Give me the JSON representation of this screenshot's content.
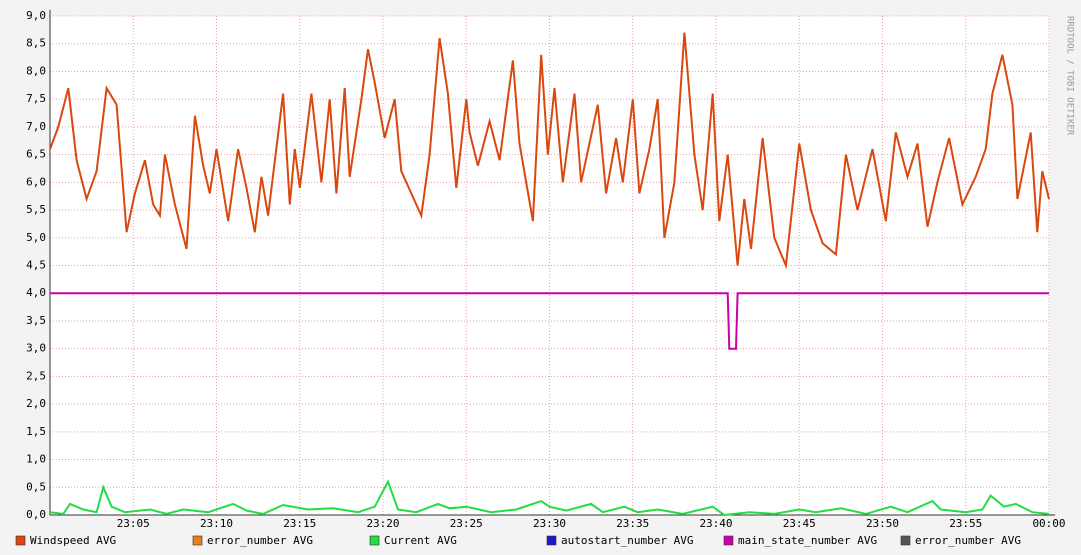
{
  "chart_data": {
    "type": "line",
    "watermark": "RRDTOOL / TOBI OETIKER",
    "xlim": [
      0,
      60
    ],
    "xticks": [
      {
        "value": 5,
        "label": "23:05"
      },
      {
        "value": 10,
        "label": "23:10"
      },
      {
        "value": 15,
        "label": "23:15"
      },
      {
        "value": 20,
        "label": "23:20"
      },
      {
        "value": 25,
        "label": "23:25"
      },
      {
        "value": 30,
        "label": "23:30"
      },
      {
        "value": 35,
        "label": "23:35"
      },
      {
        "value": 40,
        "label": "23:40"
      },
      {
        "value": 45,
        "label": "23:45"
      },
      {
        "value": 50,
        "label": "23:50"
      },
      {
        "value": 55,
        "label": "23:55"
      },
      {
        "value": 60,
        "label": "00:00"
      }
    ],
    "ylim": [
      0,
      9
    ],
    "yticks": [
      {
        "value": 0,
        "label": "0,0"
      },
      {
        "value": 0.5,
        "label": "0,5"
      },
      {
        "value": 1,
        "label": "1,0"
      },
      {
        "value": 1.5,
        "label": "1,5"
      },
      {
        "value": 2,
        "label": "2,0"
      },
      {
        "value": 2.5,
        "label": "2,5"
      },
      {
        "value": 3,
        "label": "3,0"
      },
      {
        "value": 3.5,
        "label": "3,5"
      },
      {
        "value": 4,
        "label": "4,0"
      },
      {
        "value": 4.5,
        "label": "4,5"
      },
      {
        "value": 5,
        "label": "5,0"
      },
      {
        "value": 5.5,
        "label": "5,5"
      },
      {
        "value": 6,
        "label": "6,0"
      },
      {
        "value": 6.5,
        "label": "6,5"
      },
      {
        "value": 7,
        "label": "7,0"
      },
      {
        "value": 7.5,
        "label": "7,5"
      },
      {
        "value": 8,
        "label": "8,0"
      },
      {
        "value": 8.5,
        "label": "8,5"
      },
      {
        "value": 9,
        "label": "9,0"
      }
    ],
    "grid": true,
    "series": [
      {
        "name": "Windspeed AVG",
        "color": "#d9480f",
        "x": [
          0,
          0.5,
          1.1,
          1.6,
          2.2,
          2.8,
          3.4,
          4,
          4.6,
          5.1,
          5.7,
          6.2,
          6.6,
          6.9,
          7.5,
          8.2,
          8.7,
          9.2,
          9.6,
          10,
          10.7,
          11.3,
          11.8,
          12.3,
          12.7,
          13.1,
          14,
          14.4,
          14.7,
          15,
          15.7,
          16.3,
          16.8,
          17.2,
          17.7,
          18,
          18.7,
          19.1,
          19.5,
          20.1,
          20.7,
          21.1,
          21.7,
          22.3,
          22.8,
          23.4,
          23.9,
          24.4,
          25,
          25.2,
          25.7,
          26.4,
          27,
          27.8,
          28.2,
          29,
          29.5,
          29.9,
          30.3,
          30.8,
          31.5,
          31.9,
          32.9,
          33.4,
          34,
          34.4,
          35,
          35.4,
          36,
          36.5,
          36.9,
          37.5,
          38.1,
          38.7,
          39.2,
          39.8,
          40.2,
          40.7,
          41.3,
          41.7,
          42.1,
          42.8,
          43.5,
          44.2,
          45,
          45.7,
          46.4,
          47.2,
          47.8,
          48.5,
          49.4,
          50.2,
          50.8,
          51.5,
          52.1,
          52.7,
          53.3,
          54,
          54.8,
          55.6,
          56.2,
          56.6,
          57.2,
          57.8,
          58.1,
          58.9,
          59.3,
          59.6,
          60
        ],
        "values": [
          6.6,
          7.0,
          7.7,
          6.4,
          5.7,
          6.2,
          7.7,
          7.4,
          5.1,
          5.8,
          6.4,
          5.6,
          5.4,
          6.5,
          5.6,
          4.8,
          7.2,
          6.3,
          5.8,
          6.6,
          5.3,
          6.6,
          5.9,
          5.1,
          6.1,
          5.4,
          7.6,
          5.6,
          6.6,
          5.9,
          7.6,
          6.0,
          7.5,
          5.8,
          7.7,
          6.1,
          7.5,
          8.4,
          7.8,
          6.8,
          7.5,
          6.2,
          5.8,
          5.4,
          6.5,
          8.6,
          7.6,
          5.9,
          7.5,
          6.9,
          6.3,
          7.1,
          6.4,
          8.2,
          6.7,
          5.3,
          8.3,
          6.5,
          7.7,
          6.0,
          7.6,
          6.0,
          7.4,
          5.8,
          6.8,
          6.0,
          7.5,
          5.8,
          6.6,
          7.5,
          5.0,
          6.0,
          8.7,
          6.5,
          5.5,
          7.6,
          5.3,
          6.5,
          4.5,
          5.7,
          4.8,
          6.8,
          5.0,
          4.5,
          6.7,
          5.5,
          4.9,
          4.7,
          6.5,
          5.5,
          6.6,
          5.3,
          6.9,
          6.1,
          6.7,
          5.2,
          6.0,
          6.8,
          5.6,
          6.1,
          6.6,
          7.6,
          8.3,
          7.4,
          5.7,
          6.9,
          5.1,
          6.2,
          5.7
        ]
      },
      {
        "name": "error_number AVG",
        "color": "#e67e22",
        "x": [],
        "values": []
      },
      {
        "name": "Current AVG",
        "color": "#22dd44",
        "x": [
          0,
          0.8,
          1.2,
          2,
          2.8,
          3.2,
          3.7,
          4.5,
          6,
          7,
          8,
          9.5,
          11,
          11.8,
          12.8,
          14,
          15.5,
          17,
          18.5,
          19.5,
          20.3,
          20.9,
          22,
          23.3,
          24,
          25,
          26.5,
          28,
          29.5,
          30,
          31,
          32.5,
          33.2,
          34.5,
          35.3,
          36.5,
          38,
          39.8,
          40.5,
          42,
          43.5,
          45,
          46,
          47.5,
          49,
          50.5,
          51.5,
          53,
          53.5,
          55,
          56,
          56.5,
          57.3,
          58,
          59,
          60
        ],
        "values": [
          0.05,
          0.02,
          0.2,
          0.1,
          0.05,
          0.5,
          0.15,
          0.05,
          0.1,
          0.02,
          0.1,
          0.05,
          0.2,
          0.08,
          0.02,
          0.18,
          0.1,
          0.12,
          0.05,
          0.15,
          0.6,
          0.1,
          0.05,
          0.2,
          0.12,
          0.15,
          0.05,
          0.1,
          0.25,
          0.15,
          0.08,
          0.2,
          0.05,
          0.15,
          0.05,
          0.1,
          0.02,
          0.15,
          0.0,
          0.05,
          0.02,
          0.1,
          0.05,
          0.12,
          0.02,
          0.15,
          0.05,
          0.25,
          0.1,
          0.05,
          0.1,
          0.35,
          0.15,
          0.2,
          0.05,
          0.02
        ]
      },
      {
        "name": "autostart_number AVG",
        "color": "#1a1acc",
        "x": [],
        "values": []
      },
      {
        "name": "main_state_number AVG",
        "color": "#cc00aa",
        "x": [
          0,
          40.7,
          40.8,
          41.2,
          41.3,
          60
        ],
        "values": [
          4,
          4,
          3,
          3,
          4,
          4
        ]
      },
      {
        "name": "error_number AVG",
        "color": "#555555",
        "x": [],
        "values": []
      }
    ]
  }
}
